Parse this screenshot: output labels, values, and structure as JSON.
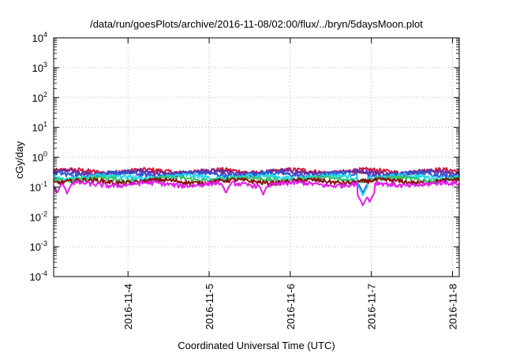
{
  "chart_data": {
    "type": "line",
    "title": "/data/run/goesPlots/archive/2016-11-08/02:00/flux/../bryn/5daysMoon.plot",
    "xlabel": "Coordinated Universal Time (UTC)",
    "ylabel": "cGy/day",
    "yscale": "log",
    "ylim": [
      0.0001,
      10000
    ],
    "xlim": [
      "2016-11-03T02:00",
      "2016-11-08T02:00"
    ],
    "grid": true,
    "y_ticks": [
      {
        "base": "10",
        "exp": "-4"
      },
      {
        "base": "10",
        "exp": "-3"
      },
      {
        "base": "10",
        "exp": "-2"
      },
      {
        "base": "10",
        "exp": "-1"
      },
      {
        "base": "10",
        "exp": "0"
      },
      {
        "base": "10",
        "exp": "1"
      },
      {
        "base": "10",
        "exp": "2"
      },
      {
        "base": "10",
        "exp": "3"
      },
      {
        "base": "10",
        "exp": "4"
      }
    ],
    "x_ticks": [
      "2016-11-4",
      "2016-11-5",
      "2016-11-6",
      "2016-11-7",
      "2016-11-8"
    ],
    "series": [
      {
        "color": "#d6183a",
        "level": 0.34,
        "dips": []
      },
      {
        "color": "#6a2ea0",
        "level": 0.31,
        "dips": []
      },
      {
        "color": "#2d56d8",
        "level": 0.27,
        "dips": [
          {
            "x": "2016-11-06T21:30",
            "min": 0.06
          }
        ]
      },
      {
        "color": "#22d8ee",
        "level": 0.22,
        "dips": [
          {
            "x": "2016-11-06T21:30",
            "min": 0.05
          }
        ]
      },
      {
        "color": "#35c46a",
        "level": 0.185,
        "dips": []
      },
      {
        "color": "#8a1010",
        "level": 0.155,
        "dips": []
      },
      {
        "color": "#e020e8",
        "level": 0.125,
        "dips": [
          {
            "x": "2016-11-03T03:00",
            "min": 0.06
          },
          {
            "x": "2016-11-03T06:00",
            "min": 0.06
          },
          {
            "x": "2016-11-05T05:00",
            "min": 0.06
          },
          {
            "x": "2016-11-05T16:00",
            "min": 0.055
          },
          {
            "x": "2016-11-06T21:30",
            "min": 0.023
          },
          {
            "x": "2016-11-06T23:30",
            "min": 0.03
          }
        ]
      }
    ]
  }
}
